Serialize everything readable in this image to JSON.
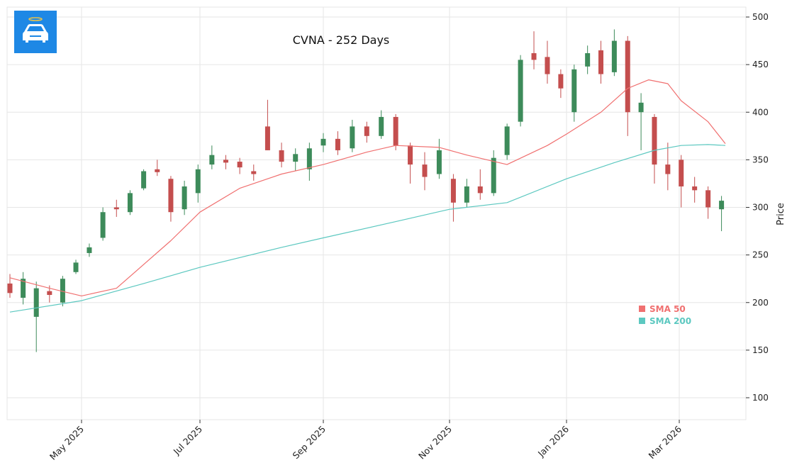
{
  "chart_data": {
    "type": "candlestick",
    "title": "CVNA - 252 Days",
    "ylabel": "Price",
    "xlabel": "",
    "ylim": [
      78,
      510
    ],
    "y_ticks": [
      100,
      150,
      200,
      250,
      300,
      350,
      400,
      450,
      500
    ],
    "x_ticks": [
      {
        "date": "2025-05-01",
        "label": "May 2025"
      },
      {
        "date": "2025-07-01",
        "label": "Jul 2025"
      },
      {
        "date": "2025-09-01",
        "label": "Sep 2025"
      },
      {
        "date": "2025-11-01",
        "label": "Nov 2025"
      },
      {
        "date": "2026-01-01",
        "label": "Jan 2026"
      },
      {
        "date": "2026-03-01",
        "label": "Mar 2026"
      }
    ],
    "grid": true,
    "legend_position": "lower-right",
    "colors": {
      "up": "#3d8b5a",
      "down": "#c44e4e",
      "sma50": "#f07070",
      "sma200": "#5cc8c0",
      "grid": "#e6e6e6"
    },
    "candles_columns": [
      "date",
      "open",
      "high",
      "low",
      "close"
    ],
    "candles": [
      [
        "2025-03-24",
        220,
        230,
        205,
        210
      ],
      [
        "2025-03-31",
        205,
        232,
        198,
        225
      ],
      [
        "2025-04-07",
        185,
        222,
        148,
        215
      ],
      [
        "2025-04-14",
        212,
        218,
        200,
        208
      ],
      [
        "2025-04-21",
        200,
        228,
        196,
        225
      ],
      [
        "2025-04-28",
        232,
        245,
        230,
        242
      ],
      [
        "2025-05-05",
        252,
        262,
        248,
        258
      ],
      [
        "2025-05-12",
        268,
        300,
        265,
        295
      ],
      [
        "2025-05-19",
        300,
        308,
        290,
        298
      ],
      [
        "2025-05-26",
        295,
        318,
        292,
        315
      ],
      [
        "2025-06-02",
        320,
        340,
        318,
        338
      ],
      [
        "2025-06-09",
        340,
        350,
        333,
        337
      ],
      [
        "2025-06-16",
        330,
        333,
        285,
        295
      ],
      [
        "2025-06-23",
        298,
        328,
        292,
        322
      ],
      [
        "2025-06-30",
        315,
        345,
        305,
        340
      ],
      [
        "2025-07-07",
        345,
        365,
        340,
        355
      ],
      [
        "2025-07-14",
        350,
        355,
        340,
        347
      ],
      [
        "2025-07-21",
        348,
        352,
        335,
        342
      ],
      [
        "2025-07-28",
        338,
        345,
        328,
        335
      ],
      [
        "2025-08-04",
        385,
        413,
        360,
        360
      ],
      [
        "2025-08-11",
        360,
        368,
        342,
        348
      ],
      [
        "2025-08-18",
        348,
        362,
        338,
        356
      ],
      [
        "2025-08-25",
        340,
        368,
        328,
        362
      ],
      [
        "2025-09-01",
        365,
        378,
        358,
        372
      ],
      [
        "2025-09-08",
        372,
        380,
        355,
        360
      ],
      [
        "2025-09-15",
        362,
        392,
        358,
        385
      ],
      [
        "2025-09-22",
        385,
        390,
        368,
        375
      ],
      [
        "2025-09-29",
        375,
        402,
        372,
        395
      ],
      [
        "2025-10-06",
        395,
        398,
        360,
        365
      ],
      [
        "2025-10-13",
        365,
        368,
        325,
        345
      ],
      [
        "2025-10-20",
        345,
        358,
        318,
        332
      ],
      [
        "2025-10-27",
        335,
        372,
        330,
        360
      ],
      [
        "2025-11-03",
        330,
        335,
        285,
        305
      ],
      [
        "2025-11-10",
        305,
        330,
        300,
        322
      ],
      [
        "2025-11-17",
        322,
        340,
        308,
        315
      ],
      [
        "2025-11-24",
        315,
        360,
        312,
        352
      ],
      [
        "2025-12-01",
        355,
        388,
        350,
        385
      ],
      [
        "2025-12-08",
        390,
        460,
        385,
        455
      ],
      [
        "2025-12-15",
        462,
        485,
        445,
        455
      ],
      [
        "2025-12-22",
        458,
        475,
        430,
        440
      ],
      [
        "2025-12-29",
        440,
        445,
        415,
        425
      ],
      [
        "2026-01-05",
        400,
        450,
        390,
        445
      ],
      [
        "2026-01-12",
        448,
        470,
        440,
        462
      ],
      [
        "2026-01-19",
        465,
        475,
        430,
        440
      ],
      [
        "2026-01-26",
        442,
        487,
        438,
        475
      ],
      [
        "2026-02-02",
        475,
        480,
        375,
        400
      ],
      [
        "2026-02-09",
        400,
        420,
        360,
        410
      ],
      [
        "2026-02-16",
        395,
        398,
        325,
        345
      ],
      [
        "2026-02-23",
        345,
        368,
        318,
        335
      ],
      [
        "2026-03-02",
        350,
        355,
        300,
        322
      ],
      [
        "2026-03-09",
        322,
        332,
        305,
        318
      ],
      [
        "2026-03-16",
        318,
        322,
        288,
        300
      ],
      [
        "2026-03-23",
        298,
        312,
        275,
        307
      ]
    ],
    "series": [
      {
        "name": "SMA 50",
        "points": [
          [
            "2025-03-24",
            226
          ],
          [
            "2025-04-14",
            215
          ],
          [
            "2025-05-01",
            207
          ],
          [
            "2025-05-19",
            215
          ],
          [
            "2025-06-02",
            240
          ],
          [
            "2025-06-16",
            265
          ],
          [
            "2025-07-01",
            295
          ],
          [
            "2025-07-21",
            320
          ],
          [
            "2025-08-11",
            335
          ],
          [
            "2025-09-01",
            345
          ],
          [
            "2025-09-22",
            358
          ],
          [
            "2025-10-06",
            365
          ],
          [
            "2025-10-27",
            363
          ],
          [
            "2025-11-10",
            355
          ],
          [
            "2025-12-01",
            345
          ],
          [
            "2025-12-22",
            365
          ],
          [
            "2026-01-01",
            377
          ],
          [
            "2026-01-19",
            400
          ],
          [
            "2026-02-02",
            425
          ],
          [
            "2026-02-13",
            434
          ],
          [
            "2026-02-23",
            430
          ],
          [
            "2026-03-02",
            412
          ],
          [
            "2026-03-16",
            390
          ],
          [
            "2026-03-25",
            367
          ]
        ]
      },
      {
        "name": "SMA 200",
        "points": [
          [
            "2025-03-24",
            190
          ],
          [
            "2025-05-01",
            202
          ],
          [
            "2025-06-02",
            220
          ],
          [
            "2025-07-01",
            237
          ],
          [
            "2025-08-11",
            258
          ],
          [
            "2025-09-01",
            268
          ],
          [
            "2025-10-06",
            285
          ],
          [
            "2025-11-01",
            298
          ],
          [
            "2025-12-01",
            305
          ],
          [
            "2026-01-01",
            330
          ],
          [
            "2026-01-26",
            347
          ],
          [
            "2026-02-16",
            360
          ],
          [
            "2026-03-02",
            365
          ],
          [
            "2026-03-16",
            366
          ],
          [
            "2026-03-25",
            365
          ]
        ]
      }
    ]
  },
  "logo": {
    "icon": "car-with-halo-icon",
    "color": "#1e88e5"
  }
}
